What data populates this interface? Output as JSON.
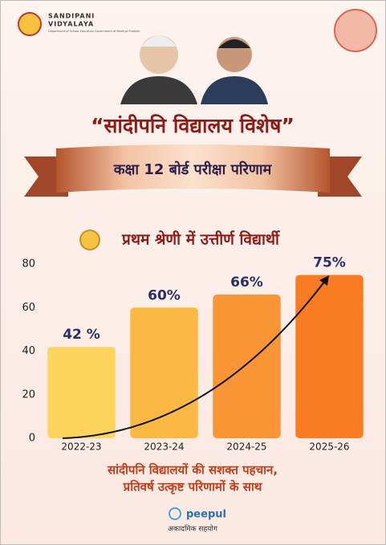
{
  "header": {
    "logo_line1": "SANDIPANI",
    "logo_line2": "VIDYALAYA",
    "logo_sub": "Department of School Education Government of Madhya Pradesh"
  },
  "title": "“सांदीपनि विद्यालय विशेष”",
  "ribbon": "कक्षा 12 बोर्ड परीक्षा परिणाम",
  "chart_data": {
    "type": "bar",
    "title": "प्रथम श्रेणी में उत्तीर्ण विद्यार्थी",
    "categories": [
      "2022-23",
      "2023-24",
      "2024-25",
      "2025-26"
    ],
    "values": [
      42,
      60,
      66,
      75
    ],
    "value_labels": [
      "42 %",
      "60%",
      "66%",
      "75%"
    ],
    "colors": [
      "#fdd55c",
      "#fbb943",
      "#f99536",
      "#f97b22"
    ],
    "ylim": [
      0,
      80
    ],
    "yticks": [
      0,
      20,
      40,
      60,
      80
    ]
  },
  "footer": {
    "line1": "सांदीपनि विद्यालयों की सशक्त पहचान,",
    "line2": "प्रतिवर्ष उत्कृष्ट परिणामों के साथ",
    "brand": "peepul",
    "brand_sub": "अकादमिक सहयोग"
  }
}
